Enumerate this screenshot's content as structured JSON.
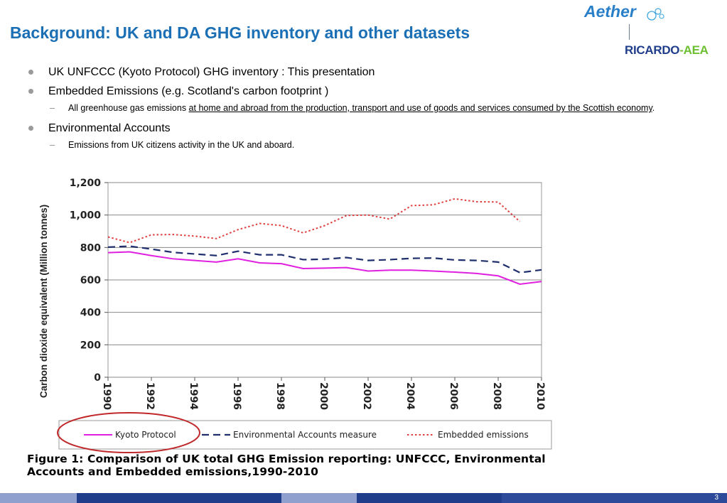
{
  "slide": {
    "title": "Background: UK and DA GHG inventory and other datasets",
    "page_number": "3"
  },
  "logos": {
    "aether": "Aether",
    "ricardo": "RICARDO",
    "aea": "AEA",
    "dash": "-"
  },
  "bullets": [
    {
      "text": "UK UNFCCC  (Kyoto Protocol) GHG inventory : This presentation"
    },
    {
      "text": "Embedded Emissions (e.g. Scotland's carbon footprint )",
      "sub_prefix": "All greenhouse gas emissions ",
      "sub_link": "at home and abroad from the production, transport and use of goods and services consumed by the Scottish economy",
      "sub_suffix": "."
    },
    {
      "text": "Environmental Accounts",
      "sub": "Emissions from UK citizens activity in the UK and aboard."
    }
  ],
  "caption": {
    "line1": "Figure 1: Comparison of UK total GHG Emission reporting: UNFCCC, Environmental",
    "line2": "Accounts and Embedded emissions,1990-2010"
  },
  "colors": {
    "title": "#1a6fb5",
    "kyoto": "#e020e0",
    "env": "#1f2f6e",
    "embedded": "#e04040",
    "ellipse": "#c0282a"
  },
  "chart_data": {
    "type": "line",
    "ylabel": "Carbon dioxide equivalent (Million tonnes)",
    "xlabel": "",
    "ylim": [
      0,
      1200
    ],
    "xlim": [
      1990,
      2010
    ],
    "yticks": [
      "0",
      "200",
      "400",
      "600",
      "800",
      "1,000",
      "1,200"
    ],
    "xticks": [
      "1990",
      "1992",
      "1994",
      "1996",
      "1998",
      "2000",
      "2002",
      "2004",
      "2006",
      "2008",
      "2010"
    ],
    "grid": "horizontal",
    "legend_position": "bottom",
    "series": [
      {
        "name": "Kyoto Protocol",
        "style": "solid",
        "x": [
          1990,
          1991,
          1992,
          1993,
          1994,
          1995,
          1996,
          1997,
          1998,
          1999,
          2000,
          2001,
          2002,
          2003,
          2004,
          2005,
          2006,
          2007,
          2008,
          2009,
          2010
        ],
        "values": [
          768,
          773,
          750,
          730,
          720,
          710,
          730,
          705,
          700,
          670,
          673,
          676,
          655,
          660,
          660,
          655,
          648,
          640,
          625,
          574,
          590
        ]
      },
      {
        "name": "Environmental Accounts measure",
        "style": "dashed",
        "x": [
          1990,
          1991,
          1992,
          1993,
          1994,
          1995,
          1996,
          1997,
          1998,
          1999,
          2000,
          2001,
          2002,
          2003,
          2004,
          2005,
          2006,
          2007,
          2008,
          2009,
          2010
        ],
        "values": [
          802,
          808,
          790,
          770,
          760,
          750,
          777,
          755,
          755,
          725,
          728,
          738,
          720,
          725,
          733,
          735,
          723,
          720,
          710,
          645,
          662
        ]
      },
      {
        "name": "Embedded emissions",
        "style": "dotted",
        "x": [
          1990,
          1991,
          1992,
          1993,
          1994,
          1995,
          1996,
          1997,
          1998,
          1999,
          2000,
          2001,
          2002,
          2003,
          2004,
          2005,
          2006,
          2007,
          2008,
          2009
        ],
        "values": [
          865,
          830,
          878,
          880,
          870,
          855,
          910,
          948,
          935,
          890,
          935,
          997,
          1000,
          975,
          1058,
          1063,
          1100,
          1082,
          1080,
          960
        ]
      }
    ]
  }
}
